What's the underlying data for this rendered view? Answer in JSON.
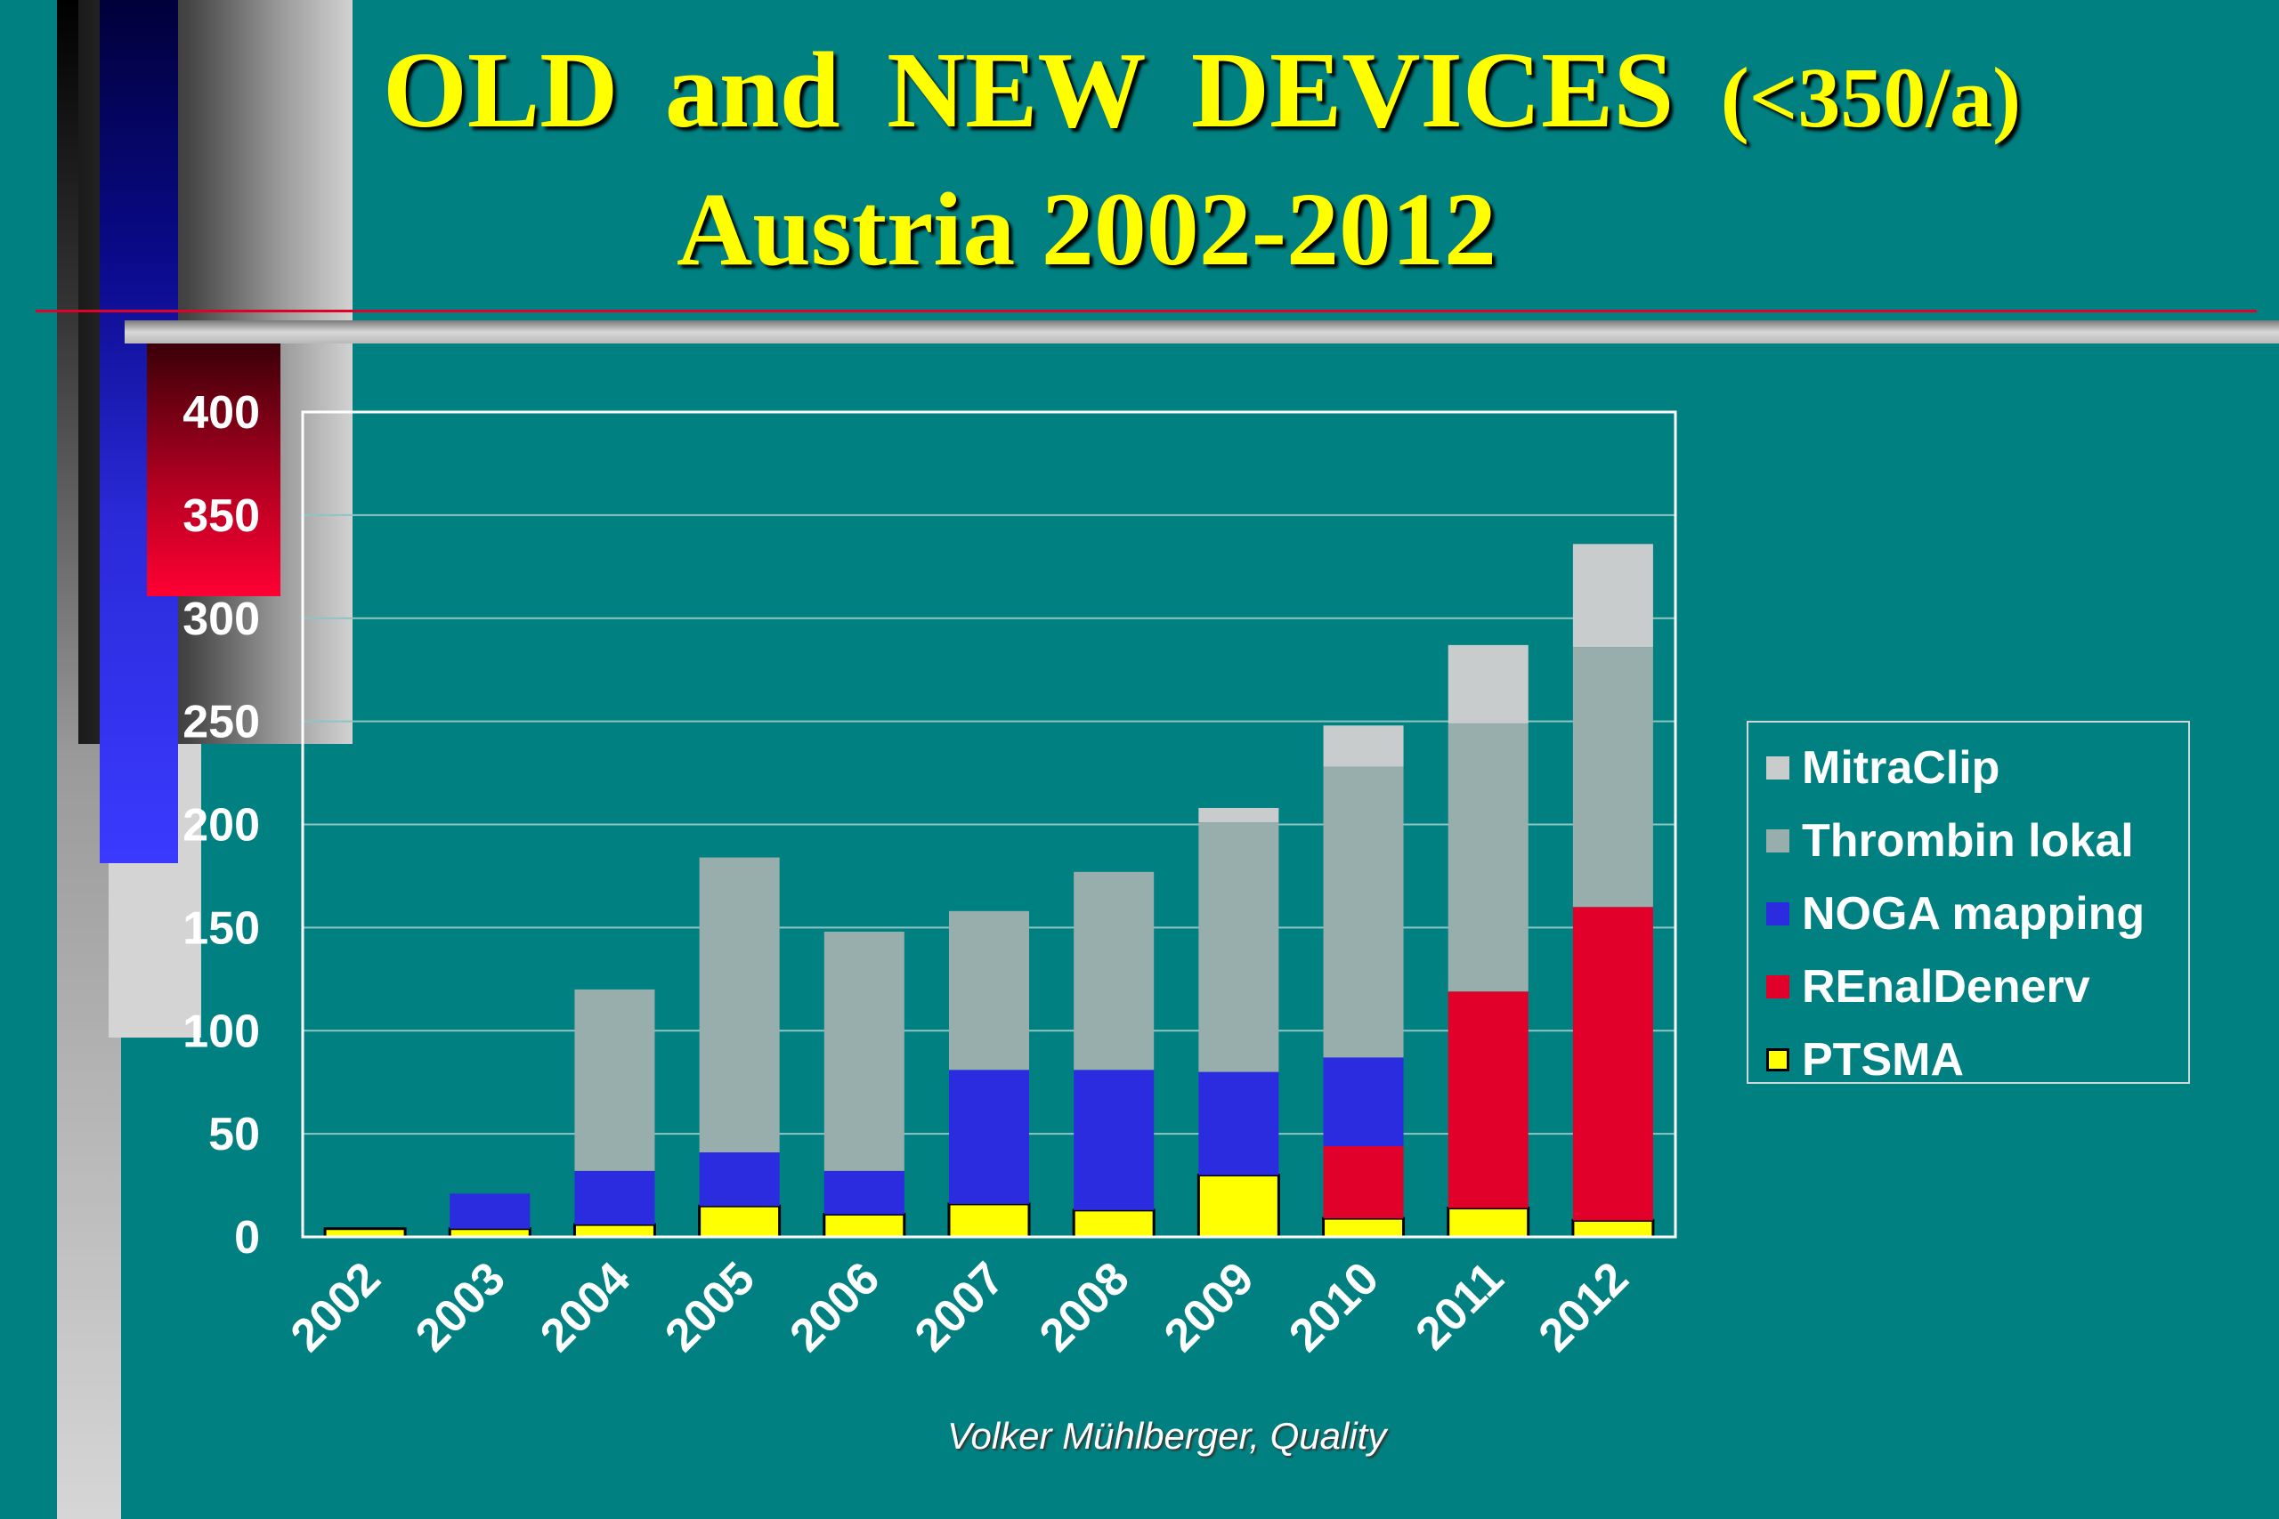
{
  "slide": {
    "title_main": "OLD and NEW DEVICES",
    "title_suffix": "(<350/a)",
    "title_line2": "Austria 2002-2012",
    "credit": "Volker Mühlberger, Quality"
  },
  "chart_data": {
    "type": "bar",
    "stacked": true,
    "categories": [
      "2002",
      "2003",
      "2004",
      "2005",
      "2006",
      "2007",
      "2008",
      "2009",
      "2010",
      "2011",
      "2012"
    ],
    "series": [
      {
        "name": "PTSMA",
        "color": "#ffff00",
        "values": [
          4,
          4,
          6,
          15,
          11,
          16,
          13,
          30,
          9,
          14,
          8
        ]
      },
      {
        "name": "REnalDenerv",
        "color": "#e0002a",
        "values": [
          0,
          0,
          0,
          0,
          0,
          0,
          0,
          0,
          35,
          105,
          152
        ]
      },
      {
        "name": "NOGA mapping",
        "color": "#2b2be0",
        "values": [
          0,
          17,
          26,
          26,
          21,
          65,
          68,
          50,
          43,
          0,
          0
        ]
      },
      {
        "name": "Thrombin lokal",
        "color": "#97aeac",
        "values": [
          0,
          0,
          88,
          143,
          116,
          77,
          96,
          121,
          141,
          130,
          126
        ]
      },
      {
        "name": "MitraClip",
        "color": "#c8cccc",
        "values": [
          0,
          0,
          0,
          0,
          0,
          0,
          0,
          7,
          20,
          38,
          50
        ]
      }
    ],
    "legend_order": [
      "MitraClip",
      "Thrombin lokal",
      "NOGA mapping",
      "REnalDenerv",
      "PTSMA"
    ],
    "yticks": [
      0,
      50,
      100,
      150,
      200,
      250,
      300,
      350,
      400
    ],
    "ylim": [
      0,
      400
    ],
    "grid": true,
    "legend_position": "right",
    "title": "OLD and NEW DEVICES (<350/a) Austria 2002-2012",
    "xlabel": "",
    "ylabel": ""
  }
}
